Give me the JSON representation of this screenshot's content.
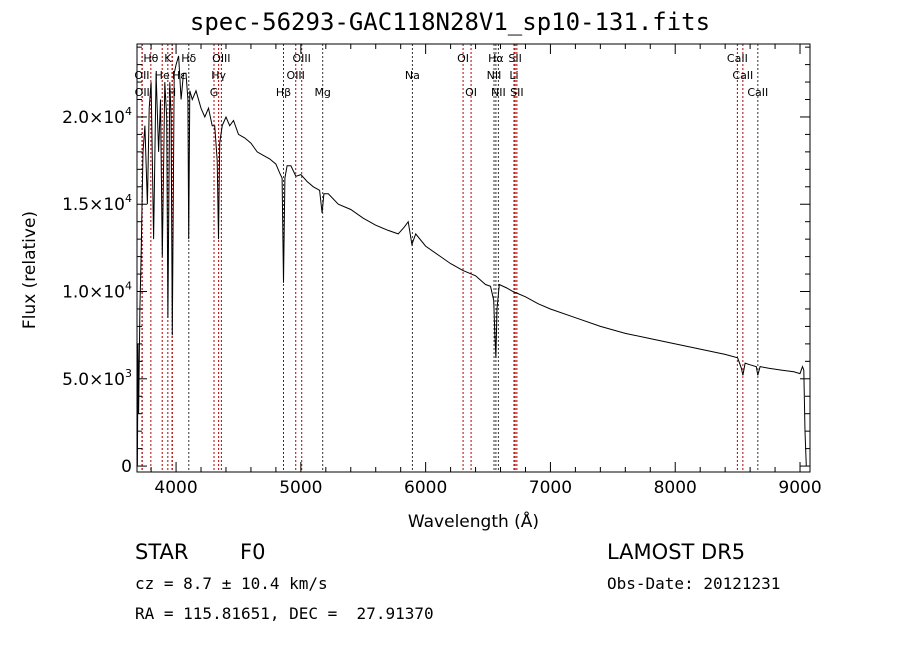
{
  "chart_data": {
    "type": "line",
    "title": "spec-56293-GAC118N28V1_sp10-131.fits",
    "xlabel": "Wavelength (Å)",
    "ylabel": "Flux (relative)",
    "xlim": [
      3687,
      9080
    ],
    "ylim": [
      -340,
      24180
    ],
    "xticks": [
      4000,
      5000,
      6000,
      7000,
      8000,
      9000
    ],
    "yticks": [
      {
        "value": 0,
        "mant": "0",
        "exp": ""
      },
      {
        "value": 5000,
        "mant": "5.0×10",
        "exp": "3"
      },
      {
        "value": 10000,
        "mant": "1.0×10",
        "exp": "4"
      },
      {
        "value": 15000,
        "mant": "1.5×10",
        "exp": "4"
      },
      {
        "value": 20000,
        "mant": "2.0×10",
        "exp": "4"
      }
    ],
    "series": [
      {
        "name": "spectrum",
        "x": [
          3690,
          3695,
          3700,
          3710,
          3720,
          3735,
          3750,
          3770,
          3785,
          3800,
          3820,
          3840,
          3860,
          3875,
          3890,
          3910,
          3925,
          3935,
          3950,
          3960,
          3970,
          3985,
          4000,
          4020,
          4040,
          4060,
          4080,
          4095,
          4101,
          4110,
          4130,
          4160,
          4200,
          4230,
          4260,
          4290,
          4310,
          4330,
          4340,
          4350,
          4370,
          4400,
          4430,
          4460,
          4500,
          4550,
          4600,
          4650,
          4700,
          4750,
          4800,
          4830,
          4850,
          4861,
          4872,
          4890,
          4920,
          4960,
          5000,
          5050,
          5100,
          5150,
          5170,
          5185,
          5220,
          5300,
          5400,
          5500,
          5600,
          5700,
          5780,
          5830,
          5860,
          5890,
          5920,
          6000,
          6100,
          6200,
          6300,
          6400,
          6480,
          6520,
          6545,
          6555,
          6563,
          6572,
          6590,
          6650,
          6700,
          6800,
          6900,
          7000,
          7200,
          7400,
          7600,
          7800,
          8000,
          8200,
          8400,
          8500,
          8530,
          8542,
          8560,
          8600,
          8650,
          8662,
          8680,
          8750,
          8850,
          8950,
          9000,
          9020,
          9030,
          9040,
          9050
        ],
        "y": [
          0,
          7000,
          3000,
          9000,
          12000,
          18000,
          19500,
          15000,
          20500,
          22000,
          13000,
          22500,
          18000,
          21000,
          12000,
          22000,
          20000,
          8500,
          22000,
          20000,
          7500,
          22500,
          23000,
          23500,
          21000,
          22500,
          22500,
          21000,
          13000,
          21500,
          21000,
          21500,
          20500,
          20000,
          20500,
          19500,
          19500,
          17500,
          13000,
          18500,
          19500,
          20000,
          19500,
          19800,
          19000,
          18800,
          18500,
          18000,
          17800,
          17600,
          17300,
          16800,
          16500,
          10500,
          16500,
          17200,
          17200,
          16600,
          16700,
          16300,
          16000,
          15800,
          14500,
          15600,
          15600,
          15000,
          14700,
          14200,
          13800,
          13500,
          13300,
          13700,
          14000,
          12700,
          13300,
          12600,
          12100,
          11600,
          11200,
          10900,
          10400,
          10300,
          9500,
          7500,
          6200,
          9000,
          10400,
          10200,
          10000,
          9700,
          9300,
          9000,
          8500,
          8000,
          7600,
          7300,
          7000,
          6700,
          6400,
          6200,
          5600,
          5200,
          5900,
          5800,
          5700,
          5200,
          5700,
          5600,
          5500,
          5400,
          5300,
          5700,
          5500,
          2000,
          0
        ]
      }
    ],
    "lines": [
      {
        "w": 3727,
        "label": "OII",
        "row": 1,
        "color": "#b00000"
      },
      {
        "w": 3729,
        "label": "OII",
        "row": 2,
        "color": "#b00000"
      },
      {
        "w": 3798,
        "label": "Hθ",
        "row": 0,
        "color": "#b00000"
      },
      {
        "w": 3889,
        "label": "He",
        "row": 1,
        "color": "#b00000"
      },
      {
        "w": 3934,
        "label": "K",
        "row": 0,
        "color": "#b00000"
      },
      {
        "w": 3968,
        "label": "H",
        "row": 2,
        "color": "#b00000"
      },
      {
        "w": 3970,
        "label": "Hε",
        "row": 1,
        "color": "#b00000"
      },
      {
        "w": 4102,
        "label": "Hδ",
        "row": 0,
        "color": "#333333"
      },
      {
        "w": 4304,
        "label": "G",
        "row": 2,
        "color": "#b00000"
      },
      {
        "w": 4341,
        "label": "Hγ",
        "row": 1,
        "color": "#b00000"
      },
      {
        "w": 4363,
        "label": "OIII",
        "row": 0,
        "color": "#b00000"
      },
      {
        "w": 4861,
        "label": "Hβ",
        "row": 2,
        "color": "#b00000"
      },
      {
        "w": 4959,
        "label": "OIII",
        "row": 1,
        "color": "#b00000"
      },
      {
        "w": 5007,
        "label": "OIII",
        "row": 0,
        "color": "#b00000"
      },
      {
        "w": 5175,
        "label": "Mg",
        "row": 2,
        "color": "#333333"
      },
      {
        "w": 5894,
        "label": "Na",
        "row": 1,
        "color": "#333333"
      },
      {
        "w": 6300,
        "label": "OI",
        "row": 0,
        "color": "#b00000"
      },
      {
        "w": 6364,
        "label": "OI",
        "row": 2,
        "color": "#b00000"
      },
      {
        "w": 6548,
        "label": "NII",
        "row": 1,
        "color": "#333333"
      },
      {
        "w": 6563,
        "label": "Hα",
        "row": 0,
        "color": "#333333"
      },
      {
        "w": 6583,
        "label": "NII",
        "row": 2,
        "color": "#333333"
      },
      {
        "w": 6708,
        "label": "Li",
        "row": 1,
        "color": "#b00000"
      },
      {
        "w": 6717,
        "label": "SII",
        "row": 0,
        "color": "#b00000"
      },
      {
        "w": 6731,
        "label": "SII",
        "row": 2,
        "color": "#b00000"
      },
      {
        "w": 8498,
        "label": "CaII",
        "row": 0,
        "color": "#b00000"
      },
      {
        "w": 8542,
        "label": "CaII",
        "row": 1,
        "color": "#b00000"
      },
      {
        "w": 8662,
        "label": "CaII",
        "row": 2,
        "color": "#333333"
      }
    ]
  },
  "info": {
    "class": "STAR",
    "subclass": "F0",
    "cz": "cz = 8.7 ± 10.4 km/s",
    "coords": "RA = 115.81651, DEC =  27.91370",
    "survey": "LAMOST DR5",
    "obsdate": "Obs-Date: 20121231"
  }
}
